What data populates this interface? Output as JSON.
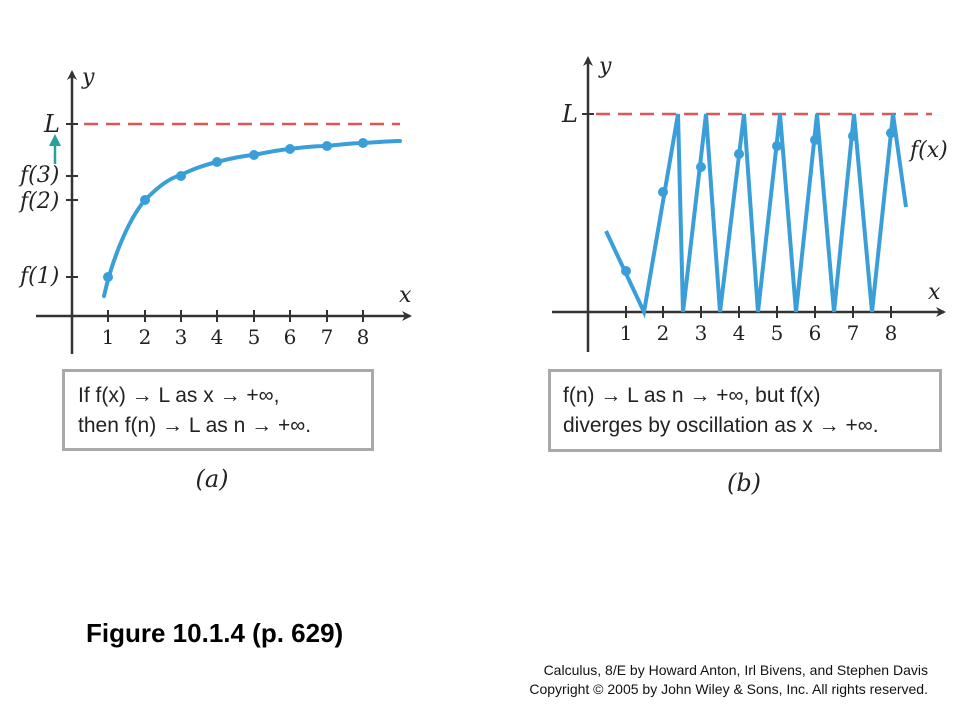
{
  "panel_a": {
    "y_axis_label": "y",
    "x_axis_label": "x",
    "limit_label": "L",
    "x_ticks": [
      "1",
      "2",
      "3",
      "4",
      "5",
      "6",
      "7",
      "8"
    ],
    "y_tick_labels": [
      "f(1)",
      "f(2)",
      "f(3)"
    ],
    "box_line1": "If f(x) → L as x → +∞,",
    "box_line2": "then f(n) → L as n → +∞.",
    "sublabel": "(a)"
  },
  "panel_b": {
    "y_axis_label": "y",
    "x_axis_label": "x",
    "limit_label": "L",
    "curve_label": "f(x)",
    "x_ticks": [
      "1",
      "2",
      "3",
      "4",
      "5",
      "6",
      "7",
      "8"
    ],
    "box_line1": "f(n) → L as n → +∞, but f(x)",
    "box_line2": "diverges by oscillation as  x → +∞.",
    "sublabel": "(b)"
  },
  "figure_caption": "Figure 10.1.4  (p. 629)",
  "credit_line1": "Calculus, 8/E by Howard Anton, Irl Bivens, and Stephen Davis",
  "credit_line2": "Copyright © 2005 by John Wiley & Sons, Inc.  All rights reserved.",
  "colors": {
    "curve": "#3a9fd8",
    "limit_line": "#e05555",
    "axis": "#333333",
    "arrow": "#2aa198",
    "box_border": "#a9a9a9"
  }
}
